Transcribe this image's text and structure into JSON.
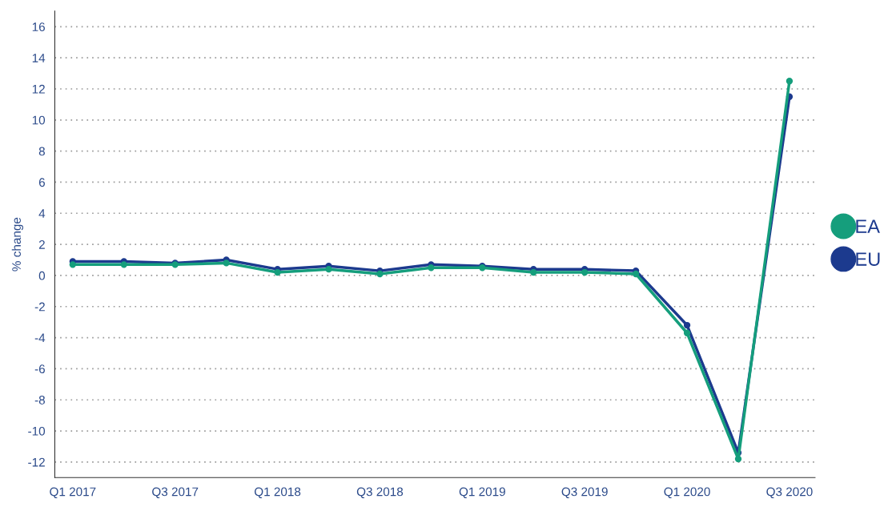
{
  "chart_data": {
    "type": "line",
    "ylabel": "% change",
    "categories": [
      "Q1 2017",
      null,
      "Q3 2017",
      null,
      "Q1 2018",
      null,
      "Q3 2018",
      null,
      "Q1 2019",
      null,
      "Q3 2019",
      null,
      "Q1 2020",
      null,
      "Q3 2020"
    ],
    "series": [
      {
        "name": "EA",
        "color": "#159e7c",
        "values": [
          0.7,
          0.7,
          0.7,
          0.8,
          0.2,
          0.4,
          0.1,
          0.5,
          0.5,
          0.2,
          0.2,
          0.1,
          -3.7,
          -11.8,
          12.5
        ]
      },
      {
        "name": "EU",
        "color": "#1c3a8e",
        "values": [
          0.9,
          0.9,
          0.8,
          1.0,
          0.4,
          0.6,
          0.3,
          0.7,
          0.6,
          0.4,
          0.4,
          0.3,
          -3.2,
          -11.4,
          11.5
        ]
      }
    ],
    "ylim": [
      -13,
      17
    ],
    "yticks": [
      -12,
      -10,
      -8,
      -6,
      -4,
      -2,
      0,
      2,
      4,
      6,
      8,
      10,
      12,
      14,
      16
    ],
    "grid": "y",
    "legend": "right",
    "marker": "circle",
    "line_style": "solid"
  }
}
